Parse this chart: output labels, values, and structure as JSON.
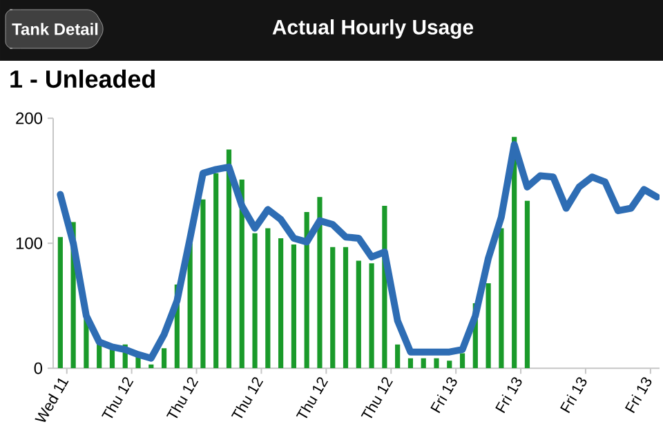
{
  "chart_data": {
    "type": "bar",
    "title": "Actual Hourly Usage",
    "subtitle": "1 - Unleaded",
    "annotations": [
      "Tank Detail"
    ],
    "categories": [
      "Wed 11",
      null,
      null,
      null,
      null,
      "Thu 12",
      null,
      null,
      null,
      null,
      "Thu 12",
      null,
      null,
      null,
      null,
      "Thu 12",
      null,
      null,
      null,
      null,
      "Thu 12",
      null,
      null,
      null,
      null,
      "Thu 12",
      null,
      null,
      null,
      null,
      "Fri 13",
      null,
      null,
      null,
      null,
      "Fri 13",
      null,
      null,
      null,
      null,
      "Fri 13",
      null,
      null,
      null,
      null,
      "Fri 13",
      null
    ],
    "series": [
      {
        "color": "#1a9a2a",
        "values": [
          105,
          117,
          40,
          21,
          18,
          19,
          10,
          3,
          16,
          67,
          100,
          135,
          156,
          175,
          151,
          108,
          112,
          104,
          99,
          125,
          137,
          97,
          97,
          86,
          84,
          130,
          19,
          8,
          8,
          8,
          6,
          12,
          52,
          68,
          112,
          185,
          134,
          null,
          null,
          null,
          null,
          null,
          null,
          null,
          null,
          null,
          null
        ]
      },
      {
        "type": "line",
        "color": "#2e6db4",
        "values": [
          139,
          100,
          42,
          21,
          17,
          15,
          11,
          8,
          27,
          54,
          104,
          156,
          159,
          161,
          130,
          112,
          127,
          119,
          104,
          101,
          118,
          115,
          105,
          104,
          89,
          93,
          38,
          13,
          13,
          13,
          13,
          15,
          42,
          88,
          121,
          179,
          145,
          154,
          153,
          128,
          145,
          153,
          149,
          126,
          128,
          143,
          137
        ]
      }
    ],
    "ylim": [
      0,
      200
    ],
    "yticks": [
      0,
      100,
      200
    ]
  }
}
